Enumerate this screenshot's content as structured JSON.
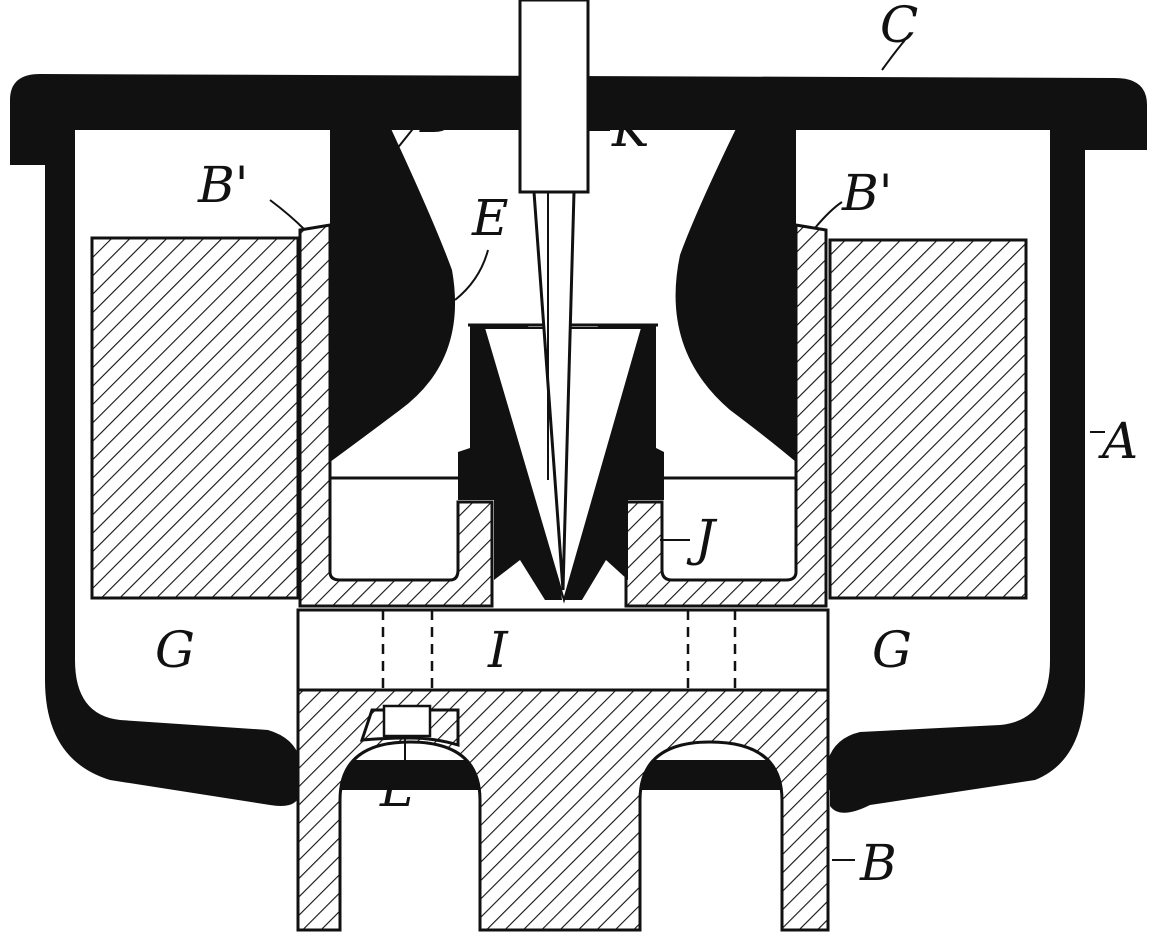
{
  "colors": {
    "ink": "#111111",
    "paper": "#ffffff"
  },
  "labels": {
    "C": "C",
    "D": "D",
    "K": "K",
    "B_prime_left": "B'",
    "B_prime_right": "B'",
    "E": "E",
    "A": "A",
    "J": "J",
    "G_left": "G",
    "I": "I",
    "G_right": "G",
    "L": "L",
    "B": "B"
  }
}
